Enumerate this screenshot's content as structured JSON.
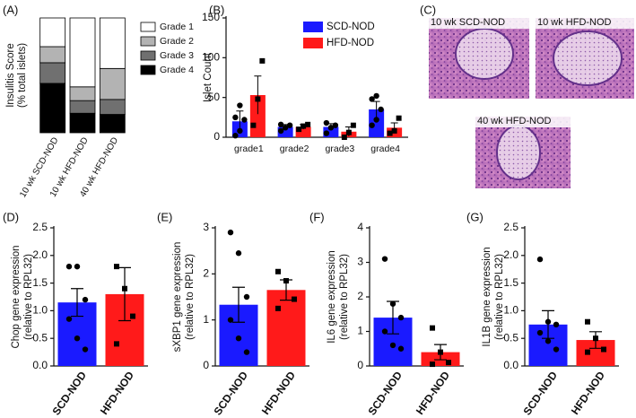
{
  "chart_data": [
    {
      "type": "stacked-bar",
      "panel": "(A)",
      "ylabel": [
        "Insulitis Score",
        "(% total islets)"
      ],
      "categories": [
        "10 wk SCD-NOD",
        "10 wk HFD-NOD",
        "40 wk HFD-NOD"
      ],
      "ylim": [
        0,
        100
      ],
      "series": [
        {
          "name": "Grade 1",
          "color": "#ffffff",
          "values": [
            25,
            60,
            44
          ]
        },
        {
          "name": "Grade 2",
          "color": "#b3b3b3",
          "values": [
            14,
            12,
            27
          ]
        },
        {
          "name": "Grade 3",
          "color": "#707070",
          "values": [
            18,
            11,
            13
          ]
        },
        {
          "name": "Grade 4",
          "color": "#000000",
          "values": [
            43,
            17,
            16
          ]
        }
      ]
    },
    {
      "type": "grouped-bar",
      "panel": "(B)",
      "ylabel": [
        "Islet Count"
      ],
      "categories": [
        "grade1",
        "grade2",
        "grade3",
        "grade4"
      ],
      "ylim": [
        0,
        150
      ],
      "yticks": [
        0,
        50,
        100,
        150
      ],
      "series": [
        {
          "name": "SCD-NOD",
          "color": "#1a1aff",
          "values": [
            20,
            13,
            13,
            35
          ],
          "errors": [
            13,
            3,
            4,
            10
          ],
          "points": [
            [
              2,
              8,
              22,
              25,
              40
            ],
            [
              8,
              12,
              15,
              16
            ],
            [
              5,
              12,
              15,
              18
            ],
            [
              15,
              22,
              35,
              48,
              52
            ]
          ]
        },
        {
          "name": "HFD-NOD",
          "color": "#ff1a1a",
          "values": [
            53,
            13,
            7,
            12
          ],
          "errors": [
            24,
            3,
            6,
            6
          ],
          "points": [
            [
              15,
              48,
              96
            ],
            [
              10,
              14,
              16
            ],
            [
              0,
              6,
              15
            ],
            [
              5,
              8,
              24
            ]
          ]
        }
      ]
    },
    {
      "type": "image",
      "panel": "(C)",
      "labels": [
        "10 wk SCD-NOD",
        "10 wk  HFD-NOD",
        "40 wk  HFD-NOD"
      ]
    },
    {
      "type": "bar",
      "panel": "(D)",
      "ylabel": [
        "Chop gene expression",
        "(relative to RPL32)"
      ],
      "categories": [
        "SCD-NOD",
        "HFD-NOD"
      ],
      "colors": [
        "#1a1aff",
        "#ff1a1a"
      ],
      "values": [
        1.15,
        1.3
      ],
      "errors": [
        0.25,
        0.48
      ],
      "points": [
        [
          1.8,
          1.8,
          1.2,
          0.85,
          0.5,
          0.3
        ],
        [
          1.8,
          1.4,
          0.9,
          0.4
        ]
      ],
      "ylim": [
        0,
        2.5
      ],
      "yticks": [
        {
          "value": 0,
          "label": "0.0"
        },
        0.5,
        {
          "value": 1,
          "label": "1.0"
        },
        1.5,
        {
          "value": 2,
          "label": "2.0"
        },
        2.5
      ]
    },
    {
      "type": "bar",
      "panel": "(E)",
      "ylabel": [
        "sXBP1 gene expression",
        "(relative to RPL32)"
      ],
      "categories": [
        "SCD-NOD",
        "HFD-NOD"
      ],
      "colors": [
        "#1a1aff",
        "#ff1a1a"
      ],
      "values": [
        1.33,
        1.65
      ],
      "errors": [
        0.38,
        0.22
      ],
      "points": [
        [
          2.9,
          2.45,
          1.5,
          1.0,
          0.6,
          0.3
        ],
        [
          2.05,
          1.85,
          1.45,
          1.25
        ]
      ],
      "ylim": [
        0,
        3
      ],
      "yticks": [
        0,
        1,
        2,
        3
      ]
    },
    {
      "type": "bar",
      "panel": "(F)",
      "ylabel": [
        "IL6 gene expression",
        "(relative to RPL32)"
      ],
      "categories": [
        "SCD-NOD",
        "HFD-NOD"
      ],
      "colors": [
        "#1a1aff",
        "#ff1a1a"
      ],
      "values": [
        1.4,
        0.4
      ],
      "errors": [
        0.47,
        0.22
      ],
      "points": [
        [
          3.1,
          1.8,
          1.4,
          1.0,
          0.6,
          0.5
        ],
        [
          1.1,
          0.4,
          0.1,
          0.05
        ]
      ],
      "ylim": [
        0,
        4
      ],
      "yticks": [
        0,
        1,
        2,
        3,
        4
      ]
    },
    {
      "type": "bar",
      "panel": "(G)",
      "ylabel": [
        "IL1B gene expression",
        "(relative to RPL32)"
      ],
      "categories": [
        "SCD-NOD",
        "HFD-NOD"
      ],
      "colors": [
        "#1a1aff",
        "#ff1a1a"
      ],
      "values": [
        0.75,
        0.47
      ],
      "errors": [
        0.25,
        0.15
      ],
      "points": [
        [
          1.93,
          0.8,
          0.75,
          0.6,
          0.45,
          0.3
        ],
        [
          0.8,
          0.5,
          0.3,
          0.25
        ]
      ],
      "ylim": [
        0,
        2.5
      ],
      "yticks": [
        {
          "value": 0,
          "label": "0.0"
        },
        0.5,
        {
          "value": 1,
          "label": "1.0"
        },
        1.5,
        {
          "value": 2,
          "label": "2.0"
        },
        2.5
      ]
    }
  ]
}
